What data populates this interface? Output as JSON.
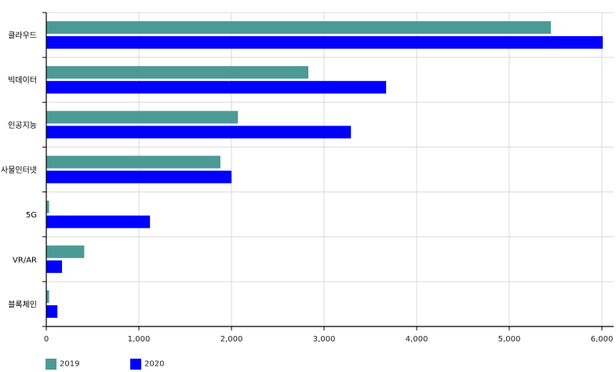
{
  "chart_data": {
    "type": "bar",
    "orientation": "horizontal",
    "categories": [
      "클라우드",
      "빅데이터",
      "인공지능",
      "사물인터넷",
      "5G",
      "VR/AR",
      "블록체인"
    ],
    "series": [
      {
        "name": "2019",
        "color": "#4c9a96",
        "values": [
          5450,
          2830,
          2070,
          1880,
          30,
          410,
          30
        ]
      },
      {
        "name": "2020",
        "color": "#0000ff",
        "values": [
          6010,
          3670,
          3290,
          2000,
          1120,
          170,
          120
        ]
      }
    ],
    "xlim": [
      0,
      6000
    ],
    "x_ticks": [
      0,
      1000,
      2000,
      3000,
      4000,
      5000,
      6000
    ],
    "x_tick_labels": [
      "0",
      "1,000",
      "2,000",
      "3,000",
      "4,000",
      "5,000",
      "6,000"
    ],
    "grid": true,
    "legend_position": "bottom-left",
    "title": "",
    "xlabel": "",
    "ylabel": ""
  }
}
